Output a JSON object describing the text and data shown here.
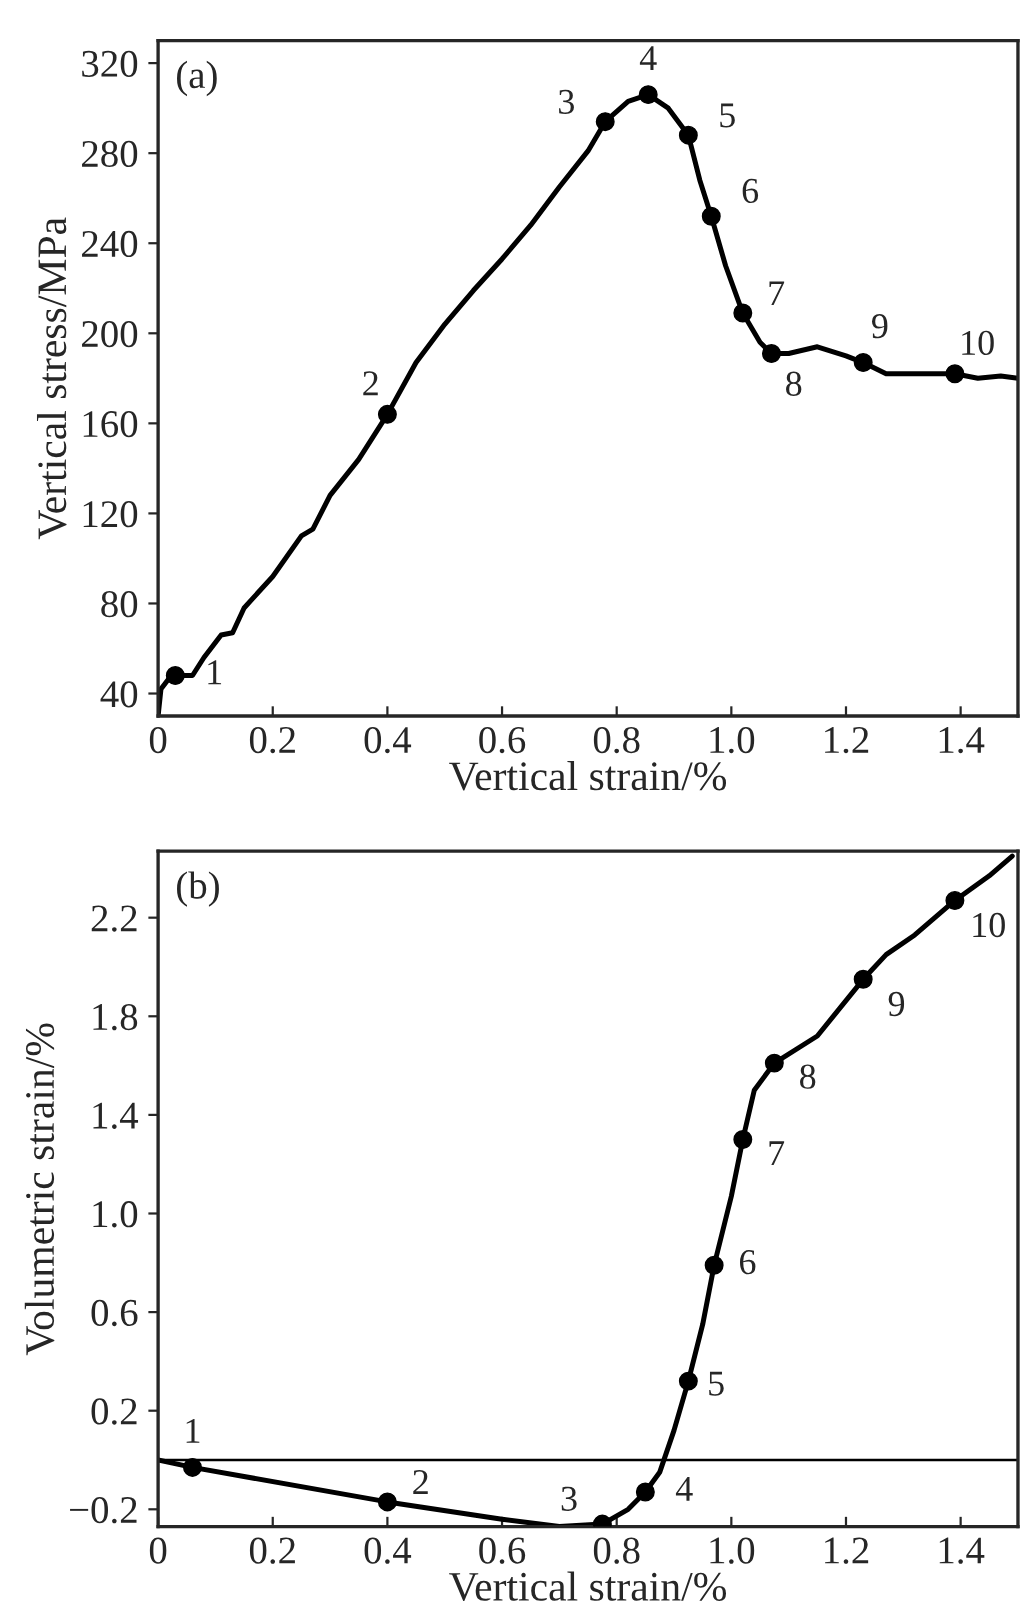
{
  "chart_data": [
    {
      "type": "line",
      "xlabel": "Vertical strain/%",
      "ylabel": "Vertical stress/MPa",
      "xlim": [
        0,
        1.5
      ],
      "ylim": [
        30,
        330
      ],
      "xticks": [
        0,
        0.2,
        0.4,
        0.6,
        0.8,
        {
          "value": 1.0,
          "label": "1.0"
        },
        1.2,
        1.4
      ],
      "yticks": [
        40,
        80,
        120,
        160,
        200,
        240,
        280,
        320
      ],
      "grid": false,
      "legend": false,
      "series": [
        {
          "color": "#000000",
          "marker": "none",
          "x": [
            0,
            0.005,
            0.02,
            0.03,
            0.06,
            0.08,
            0.11,
            0.13,
            0.15,
            0.2,
            0.25,
            0.27,
            0.3,
            0.35,
            0.38,
            0.4,
            0.45,
            0.5,
            0.55,
            0.6,
            0.65,
            0.7,
            0.75,
            0.78,
            0.82,
            0.855,
            0.89,
            0.925,
            0.945,
            0.965,
            0.99,
            1.02,
            1.05,
            1.07,
            1.1,
            1.15,
            1.2,
            1.23,
            1.27,
            1.35,
            1.39,
            1.43,
            1.47,
            1.5
          ],
          "values": [
            30,
            42,
            47,
            48,
            48,
            56,
            66,
            67,
            78,
            92,
            110,
            113,
            128,
            144,
            156,
            164,
            187,
            204,
            219,
            233,
            248,
            265,
            281,
            294,
            303,
            306,
            300,
            288,
            268,
            252,
            230,
            209,
            196,
            191,
            191,
            194,
            190,
            187,
            182,
            182,
            182,
            180,
            181,
            180
          ]
        },
        {
          "type": "scatter",
          "color": "#000000",
          "marker": "circle",
          "x": [
            0.03,
            0.4,
            0.78,
            0.855,
            0.925,
            0.965,
            1.02,
            1.07,
            1.23,
            1.39
          ],
          "values": [
            48,
            164,
            294,
            306,
            288,
            252,
            209,
            191,
            187,
            182
          ]
        }
      ],
      "annotations": [
        "(a)",
        {
          "text": "1",
          "x": 0.03,
          "y": 48
        },
        {
          "text": "2",
          "x": 0.4,
          "y": 164
        },
        {
          "text": "3",
          "x": 0.78,
          "y": 294
        },
        {
          "text": "4",
          "x": 0.855,
          "y": 306
        },
        {
          "text": "5",
          "x": 0.925,
          "y": 288
        },
        {
          "text": "6",
          "x": 0.965,
          "y": 252
        },
        {
          "text": "7",
          "x": 1.02,
          "y": 209
        },
        {
          "text": "8",
          "x": 1.07,
          "y": 191
        },
        {
          "text": "9",
          "x": 1.23,
          "y": 187
        },
        {
          "text": "10",
          "x": 1.39,
          "y": 182
        }
      ]
    },
    {
      "type": "line",
      "xlabel": "Vertical strain/%",
      "ylabel": "Volumetric strain/%",
      "xlim": [
        0,
        1.5
      ],
      "ylim": [
        -0.27,
        2.47
      ],
      "xticks": [
        0,
        0.2,
        0.4,
        0.6,
        0.8,
        {
          "value": 1.0,
          "label": "1.0"
        },
        1.2,
        1.4
      ],
      "yticks": [
        {
          "value": -0.2,
          "label": "−0.2"
        },
        0.2,
        0.6,
        {
          "value": 1.0,
          "label": "1.0"
        },
        1.4,
        1.8,
        2.2
      ],
      "grid": false,
      "legend": false,
      "ref_lines": [
        {
          "axis": "y",
          "value": 0,
          "color": "#000000"
        }
      ],
      "series": [
        {
          "color": "#000000",
          "marker": "none",
          "x": [
            0,
            0.06,
            0.4,
            0.6,
            0.7,
            0.775,
            0.82,
            0.85,
            0.875,
            0.9,
            0.925,
            0.95,
            0.97,
            1.0,
            1.02,
            1.04,
            1.075,
            1.15,
            1.23,
            1.27,
            1.32,
            1.39,
            1.45,
            1.49
          ],
          "values": [
            0,
            -0.03,
            -0.17,
            -0.24,
            -0.27,
            -0.26,
            -0.2,
            -0.13,
            -0.05,
            0.12,
            0.32,
            0.55,
            0.79,
            1.07,
            1.3,
            1.5,
            1.61,
            1.72,
            1.95,
            2.05,
            2.13,
            2.27,
            2.37,
            2.45
          ]
        },
        {
          "type": "scatter",
          "color": "#000000",
          "marker": "circle",
          "x": [
            0.06,
            0.4,
            0.775,
            0.85,
            0.925,
            0.97,
            1.02,
            1.075,
            1.23,
            1.39
          ],
          "values": [
            -0.03,
            -0.17,
            -0.26,
            -0.13,
            0.32,
            0.79,
            1.3,
            1.61,
            1.95,
            2.27
          ]
        }
      ],
      "annotations": [
        "(b)",
        {
          "text": "1",
          "x": 0.06,
          "y": -0.03
        },
        {
          "text": "2",
          "x": 0.4,
          "y": -0.17
        },
        {
          "text": "3",
          "x": 0.775,
          "y": -0.26
        },
        {
          "text": "4",
          "x": 0.85,
          "y": -0.13
        },
        {
          "text": "5",
          "x": 0.925,
          "y": 0.32
        },
        {
          "text": "6",
          "x": 0.97,
          "y": 0.79
        },
        {
          "text": "7",
          "x": 1.02,
          "y": 1.3
        },
        {
          "text": "8",
          "x": 1.075,
          "y": 1.61
        },
        {
          "text": "9",
          "x": 1.23,
          "y": 1.95
        },
        {
          "text": "10",
          "x": 1.39,
          "y": 2.27
        }
      ]
    }
  ]
}
